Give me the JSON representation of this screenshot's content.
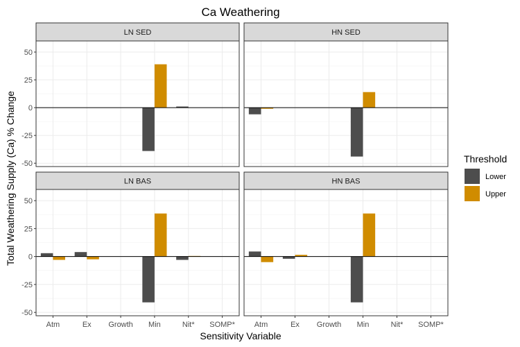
{
  "chart_data": {
    "type": "bar",
    "title": "Ca Weathering",
    "xlabel": "Sensitivity Variable",
    "ylabel": "Total Weathering Supply (Ca) % Change",
    "categories": [
      "Atm",
      "Ex",
      "Growth",
      "Min",
      "Nit*",
      "SOMP*"
    ],
    "ylim": [
      -53,
      60
    ],
    "yticks": [
      50,
      25,
      0,
      -25,
      -50
    ],
    "ytick_labels": [
      "50",
      "25",
      "0",
      "-25",
      "-50"
    ],
    "grid": true,
    "legend": {
      "title": "Threshold",
      "position": "right",
      "entries": [
        {
          "name": "Lower",
          "color": "#4d4d4d"
        },
        {
          "name": "Upper",
          "color": "#d08c00"
        }
      ]
    },
    "panels": [
      {
        "strip": "LN SED",
        "series": [
          {
            "name": "Lower",
            "values": [
              0,
              0,
              0,
              -39,
              1,
              0
            ]
          },
          {
            "name": "Upper",
            "values": [
              0,
              0,
              0,
              39,
              0,
              0
            ]
          }
        ]
      },
      {
        "strip": "HN SED",
        "series": [
          {
            "name": "Lower",
            "values": [
              -6,
              0,
              0,
              -44,
              0,
              0
            ]
          },
          {
            "name": "Upper",
            "values": [
              -1,
              0,
              0,
              14,
              0,
              0
            ]
          }
        ]
      },
      {
        "strip": "LN BAS",
        "series": [
          {
            "name": "Lower",
            "values": [
              3,
              4,
              0,
              -41,
              -3,
              0
            ]
          },
          {
            "name": "Upper",
            "values": [
              -3,
              -2.5,
              0,
              38.5,
              0.5,
              0
            ]
          }
        ]
      },
      {
        "strip": "HN BAS",
        "series": [
          {
            "name": "Lower",
            "values": [
              4.5,
              -2,
              0,
              -41,
              0,
              0
            ]
          },
          {
            "name": "Upper",
            "values": [
              -5,
              1.5,
              0,
              38.5,
              0,
              0
            ]
          }
        ]
      }
    ]
  }
}
